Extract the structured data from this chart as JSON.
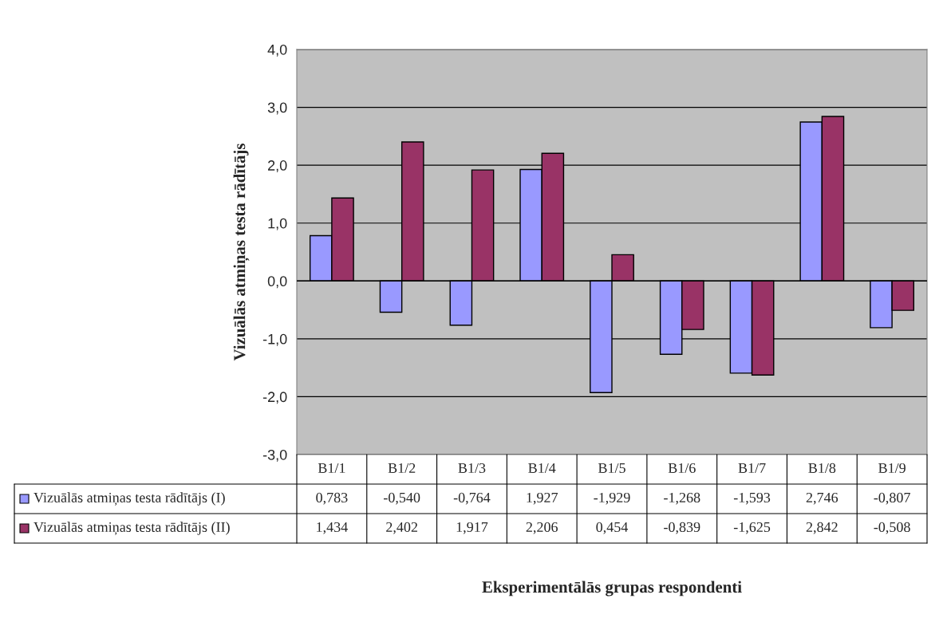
{
  "chart_data": {
    "type": "bar",
    "annotations": [
      "Eksperimentālās grupas respondenti"
    ],
    "ylabel": "Vizuālās atmiņas testa rādītājs",
    "categories": [
      "B1/1",
      "B1/2",
      "B1/3",
      "B1/4",
      "B1/5",
      "B1/6",
      "B1/7",
      "B1/8",
      "B1/9"
    ],
    "series": [
      {
        "name": "Vizuālās atmiņas testa rādītājs (I)",
        "color": "#9999ff",
        "values": [
          0.783,
          -0.54,
          -0.764,
          1.927,
          -1.929,
          -1.268,
          -1.593,
          2.746,
          -0.807
        ],
        "value_labels": [
          "0,783",
          "-0,540",
          "-0,764",
          "1,927",
          "-1,929",
          "-1,268",
          "-1,593",
          "2,746",
          "-0,807"
        ]
      },
      {
        "name": "Vizuālās atmiņas testa rādītājs (II)",
        "color": "#993366",
        "values": [
          1.434,
          2.402,
          1.917,
          2.206,
          0.454,
          -0.839,
          -1.625,
          2.842,
          -0.508
        ],
        "value_labels": [
          "1,434",
          "2,402",
          "1,917",
          "2,206",
          "0,454",
          "-0,839",
          "-1,625",
          "2,842",
          "-0,508"
        ]
      }
    ],
    "ylim": [
      -3,
      4
    ],
    "yticks": [
      {
        "value": -3,
        "label": "-3,0"
      },
      {
        "value": -2,
        "label": "-2,0"
      },
      {
        "value": -1,
        "label": "-1,0"
      },
      {
        "value": 0,
        "label": "0,0"
      },
      {
        "value": 1,
        "label": "1,0"
      },
      {
        "value": 2,
        "label": "2,0"
      },
      {
        "value": 3,
        "label": "3,0"
      },
      {
        "value": 4,
        "label": "4,0"
      }
    ],
    "grid": "y",
    "legend": "bottom"
  }
}
